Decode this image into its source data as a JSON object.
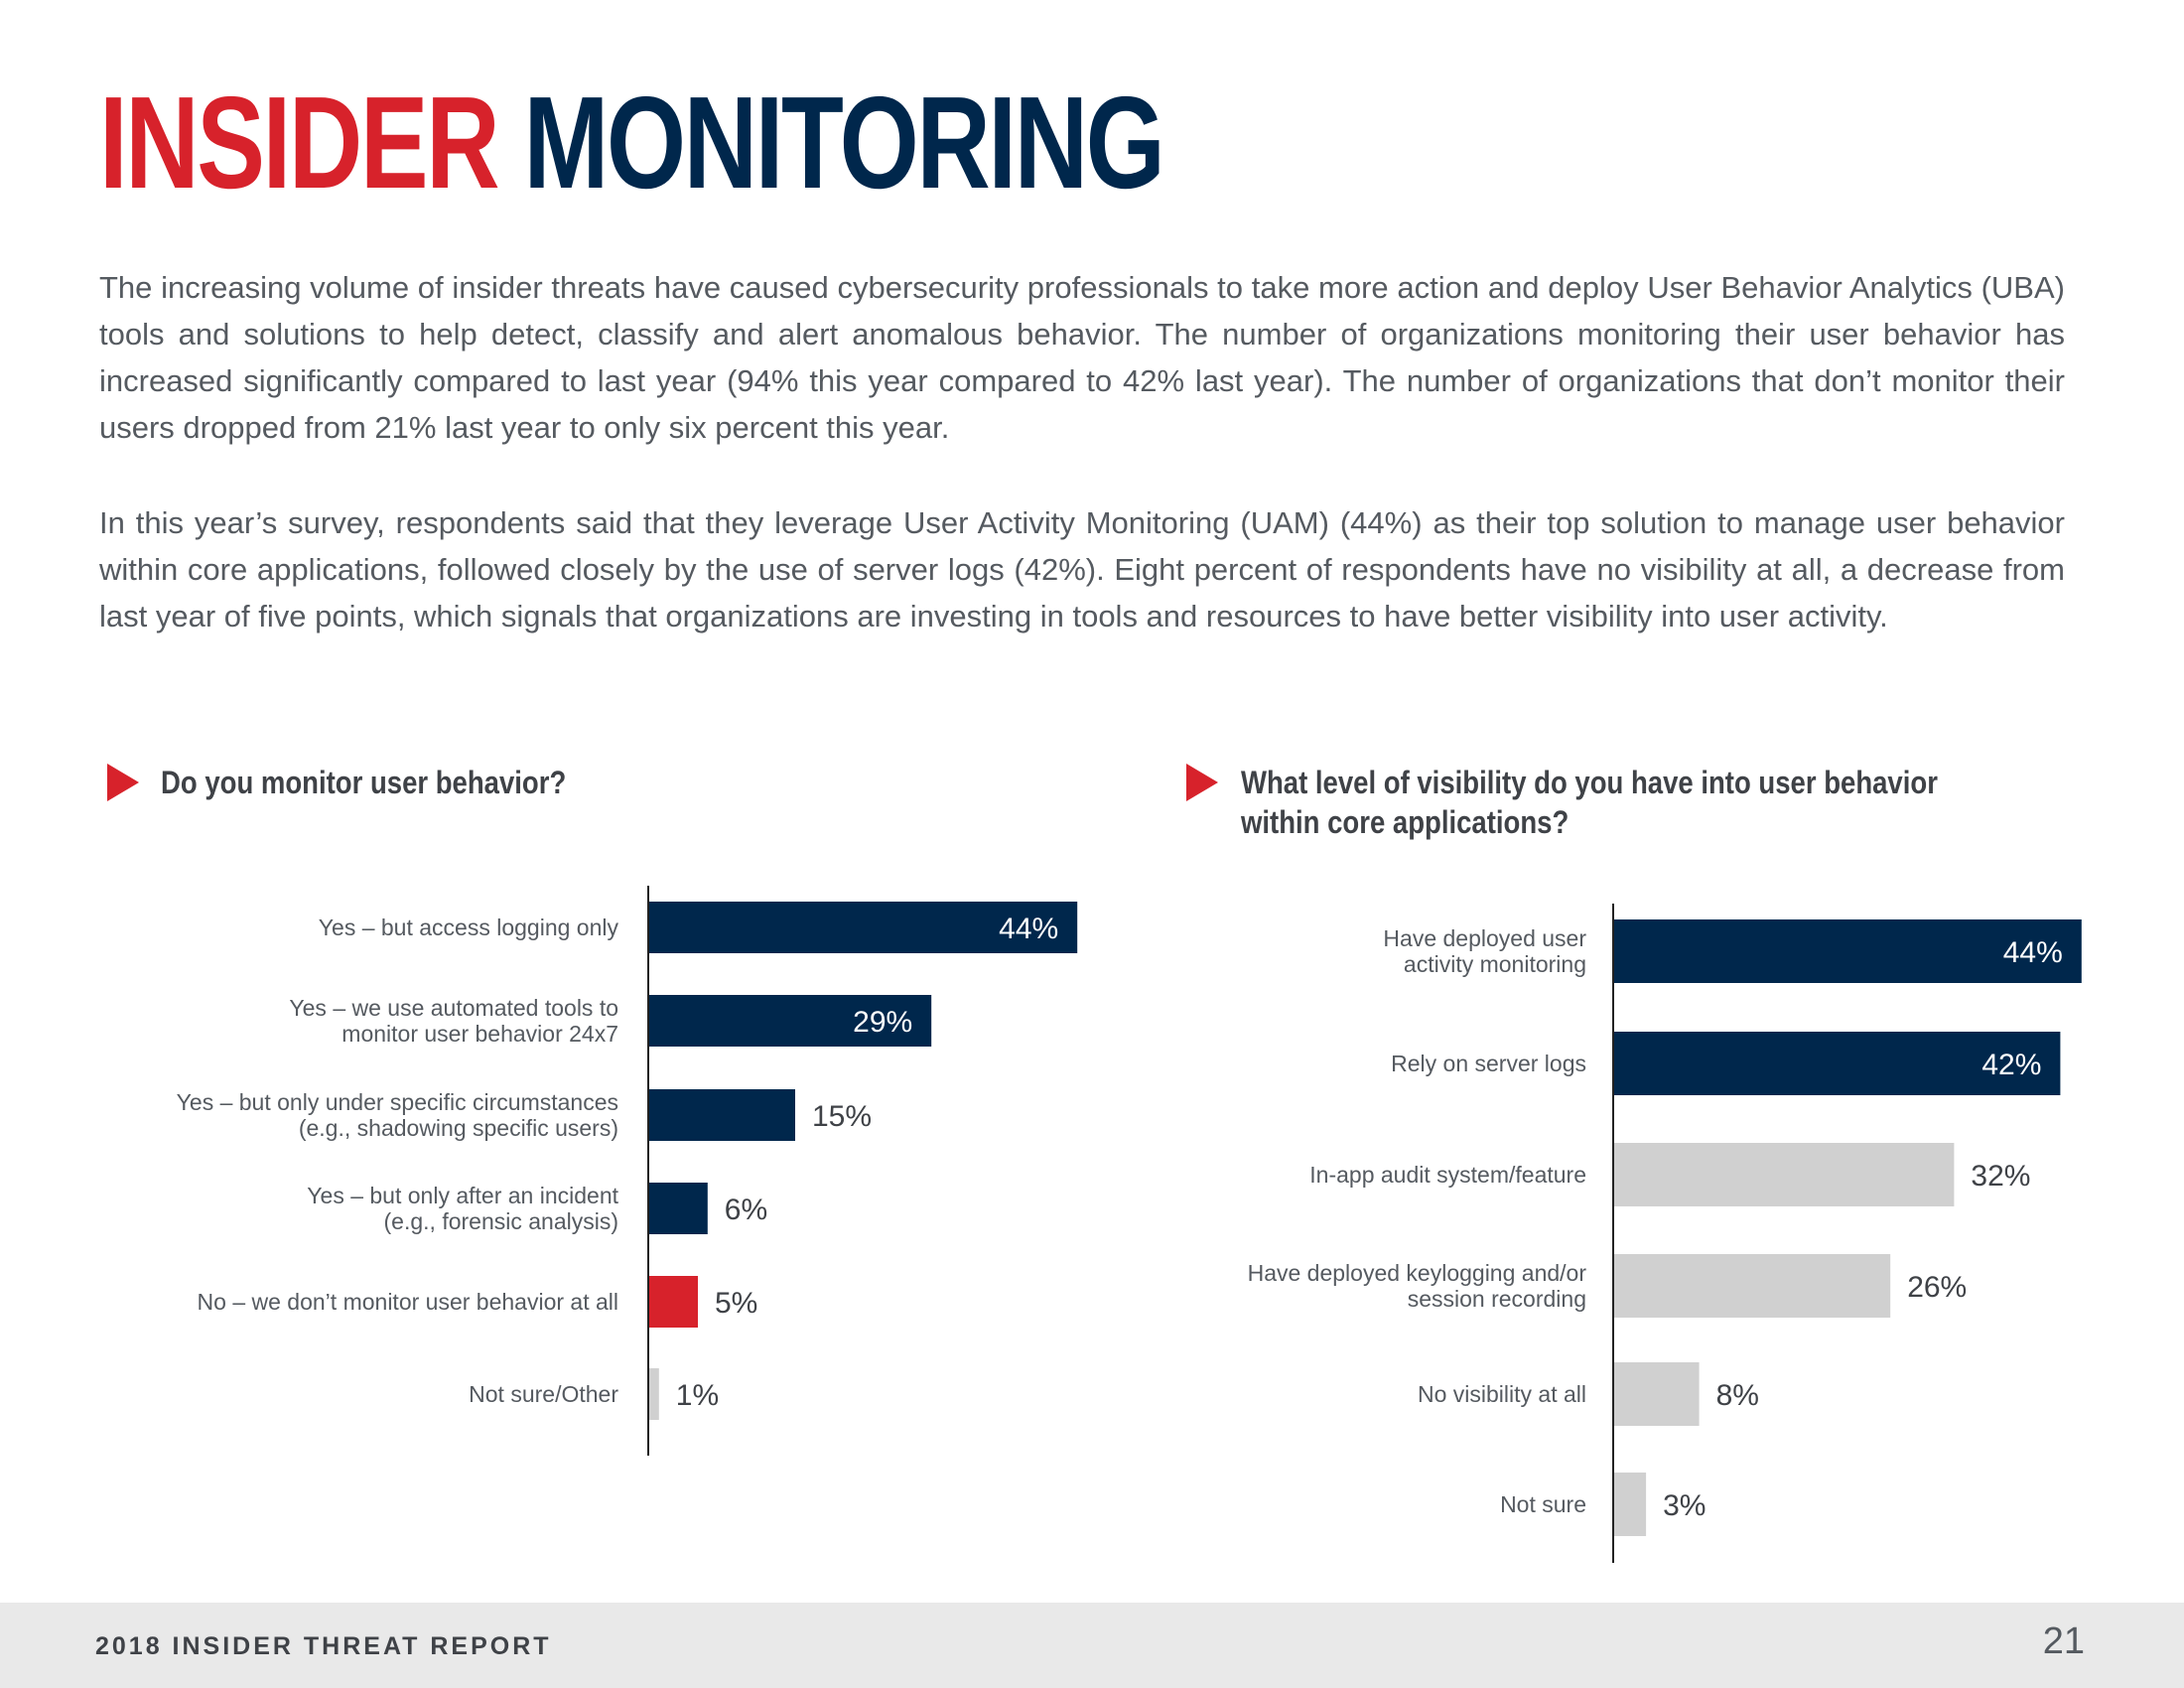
{
  "title": {
    "part1": "INSIDER",
    "part2": "MONITORING"
  },
  "paragraphs": [
    "The increasing volume of insider threats have caused cybersecurity professionals to take more action and deploy User Behavior Analytics (UBA) tools and solutions to help detect, classify and alert anomalous behavior. The number of organizations monitoring their user behavior has increased significantly compared to last year (94% this year compared to 42% last year). The number of organizations that don’t monitor their users dropped from 21% last year to only six percent this year.",
    "In this year’s survey, respondents said that they leverage User Activity Monitoring (UAM) (44%) as their top solution to manage user behavior within core applications, followed closely by the use of server logs (42%).  Eight percent of respondents have no visibility at all, a decrease from last year of five points, which signals that organizations are investing in tools and resources to have better visibility into user activity."
  ],
  "colors": {
    "red": "#d7222b",
    "navy": "#00274c",
    "gray": "#d0d0d0",
    "text": "#555a60"
  },
  "chart_data": [
    {
      "type": "bar",
      "orientation": "horizontal",
      "title": "Do you monitor user behavior?",
      "categories": [
        [
          "Yes – but access logging only"
        ],
        [
          "Yes – we use automated tools to",
          "monitor user behavior 24x7"
        ],
        [
          "Yes – but only under specific circumstances",
          "(e.g., shadowing specific users)"
        ],
        [
          "Yes – but only after an incident",
          "(e.g., forensic analysis)"
        ],
        [
          "No – we don’t monitor user behavior at all"
        ],
        [
          "Not sure/Other"
        ]
      ],
      "values": [
        44,
        29,
        15,
        6,
        5,
        1
      ],
      "value_labels": [
        "44%",
        "29%",
        "15%",
        "6%",
        "5%",
        "1%"
      ],
      "bar_colors": [
        "#00274c",
        "#00274c",
        "#00274c",
        "#00274c",
        "#d7222b",
        "#d0d0d0"
      ],
      "label_inside": [
        true,
        true,
        false,
        false,
        false,
        false
      ],
      "unit": "%"
    },
    {
      "type": "bar",
      "orientation": "horizontal",
      "title": "What level of visibility do you have into user behavior within core applications?",
      "categories": [
        [
          "Have deployed user",
          "activity monitoring"
        ],
        [
          "Rely on server logs"
        ],
        [
          "In-app audit system/feature"
        ],
        [
          "Have deployed keylogging and/or",
          "session recording"
        ],
        [
          "No visibility at all"
        ],
        [
          "Not sure"
        ]
      ],
      "values": [
        44,
        42,
        32,
        26,
        8,
        3
      ],
      "value_labels": [
        "44%",
        "42%",
        "32%",
        "26%",
        "8%",
        "3%"
      ],
      "bar_colors": [
        "#00274c",
        "#00274c",
        "#d0d0d0",
        "#d0d0d0",
        "#d0d0d0",
        "#d0d0d0"
      ],
      "label_inside": [
        true,
        true,
        false,
        false,
        false,
        false
      ],
      "unit": "%"
    }
  ],
  "footer": {
    "label": "2018 INSIDER THREAT REPORT",
    "page_number": "21"
  }
}
